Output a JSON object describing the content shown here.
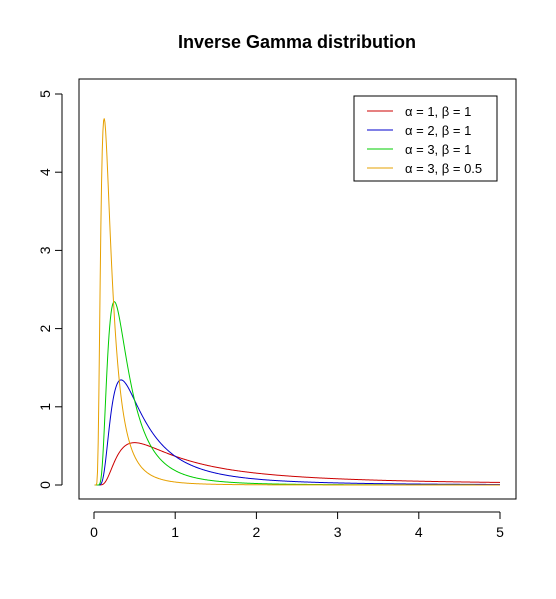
{
  "chart_data": {
    "type": "line",
    "title": "Inverse Gamma distribution",
    "xlabel": "",
    "ylabel": "",
    "xlim": [
      0,
      5
    ],
    "ylim": [
      0,
      5
    ],
    "x_ticks": [
      0,
      1,
      2,
      3,
      4,
      5
    ],
    "y_ticks": [
      0,
      1,
      2,
      3,
      4,
      5
    ],
    "x_tick_labels": [
      "0",
      "1",
      "2",
      "3",
      "4",
      "5"
    ],
    "y_tick_labels": [
      "0",
      "1",
      "2",
      "3",
      "4",
      "5"
    ],
    "grid": false,
    "legend_position": "top-right",
    "x_range": [
      0.01,
      5
    ],
    "series": [
      {
        "name": "α = 1,  β = 1",
        "alpha": 1,
        "beta": 1,
        "color": "#cc0000"
      },
      {
        "name": "α = 2,  β = 1",
        "alpha": 2,
        "beta": 1,
        "color": "#0000cc"
      },
      {
        "name": "α = 3,  β = 1",
        "alpha": 3,
        "beta": 1,
        "color": "#00cc00"
      },
      {
        "name": "α = 3,  β = 0.5",
        "alpha": 3,
        "beta": 0.5,
        "color": "#e6a000"
      }
    ]
  }
}
